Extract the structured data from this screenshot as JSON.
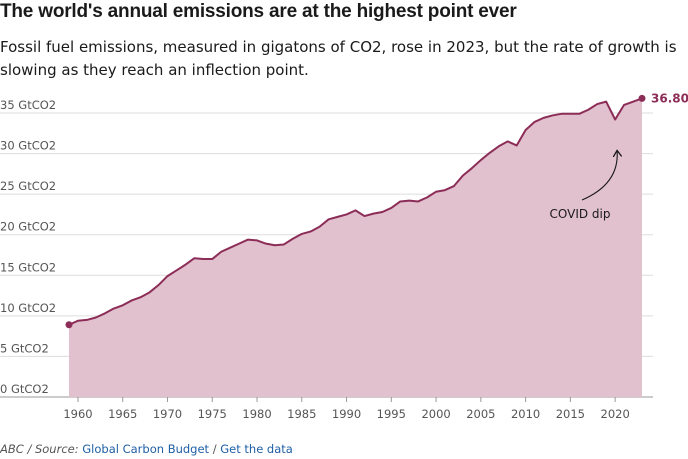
{
  "header": {
    "title": "The world's annual emissions are at the highest point ever",
    "subtitle": "Fossil fuel emissions, measured in gigatons of CO2, rose in 2023, but the rate of growth is slowing as they reach an inflection point."
  },
  "footer": {
    "credit_prefix": "ABC / Source: ",
    "source_link": "Global Carbon Budget",
    "separator": " / ",
    "data_link": "Get the data"
  },
  "colors": {
    "line": "#8c2d57",
    "area": "#e2c1cf",
    "grid": "#dddddd"
  },
  "chart_data": {
    "type": "area",
    "title": "",
    "xlabel": "",
    "ylabel": "",
    "xlim": [
      1959,
      2023
    ],
    "ylim": [
      0,
      38
    ],
    "grid": "horizontal",
    "y_ticks": [
      0,
      5,
      10,
      15,
      20,
      25,
      30,
      35
    ],
    "y_tick_labels": [
      "0 GtCO2",
      "5 GtCO2",
      "10 GtCO2",
      "15 GtCO2",
      "20 GtCO2",
      "25 GtCO2",
      "30 GtCO2",
      "35 GtCO2"
    ],
    "x_ticks": [
      1960,
      1965,
      1970,
      1975,
      1980,
      1985,
      1990,
      1995,
      2000,
      2005,
      2010,
      2015,
      2020
    ],
    "end_label": "36.80",
    "annotation": {
      "text": "COVID dip",
      "year": 2020,
      "value": 34.2
    },
    "x": [
      1959,
      1960,
      1961,
      1962,
      1963,
      1964,
      1965,
      1966,
      1967,
      1968,
      1969,
      1970,
      1971,
      1972,
      1973,
      1974,
      1975,
      1976,
      1977,
      1978,
      1979,
      1980,
      1981,
      1982,
      1983,
      1984,
      1985,
      1986,
      1987,
      1988,
      1989,
      1990,
      1991,
      1992,
      1993,
      1994,
      1995,
      1996,
      1997,
      1998,
      1999,
      2000,
      2001,
      2002,
      2003,
      2004,
      2005,
      2006,
      2007,
      2008,
      2009,
      2010,
      2011,
      2012,
      2013,
      2014,
      2015,
      2016,
      2017,
      2018,
      2019,
      2020,
      2021,
      2022,
      2023
    ],
    "series": [
      {
        "values": [
          8.9,
          9.4,
          9.5,
          9.8,
          10.3,
          10.9,
          11.3,
          11.9,
          12.3,
          12.9,
          13.8,
          14.9,
          15.6,
          16.3,
          17.1,
          17.0,
          17.0,
          17.9,
          18.4,
          18.9,
          19.4,
          19.3,
          18.9,
          18.7,
          18.8,
          19.5,
          20.1,
          20.4,
          21.0,
          21.9,
          22.2,
          22.5,
          23.0,
          22.3,
          22.6,
          22.8,
          23.3,
          24.1,
          24.2,
          24.1,
          24.6,
          25.3,
          25.5,
          26.0,
          27.3,
          28.2,
          29.2,
          30.1,
          30.9,
          31.5,
          31.0,
          32.9,
          33.9,
          34.4,
          34.7,
          34.9,
          34.9,
          34.9,
          35.4,
          36.1,
          36.4,
          34.2,
          36.0,
          36.4,
          36.8
        ]
      }
    ]
  }
}
